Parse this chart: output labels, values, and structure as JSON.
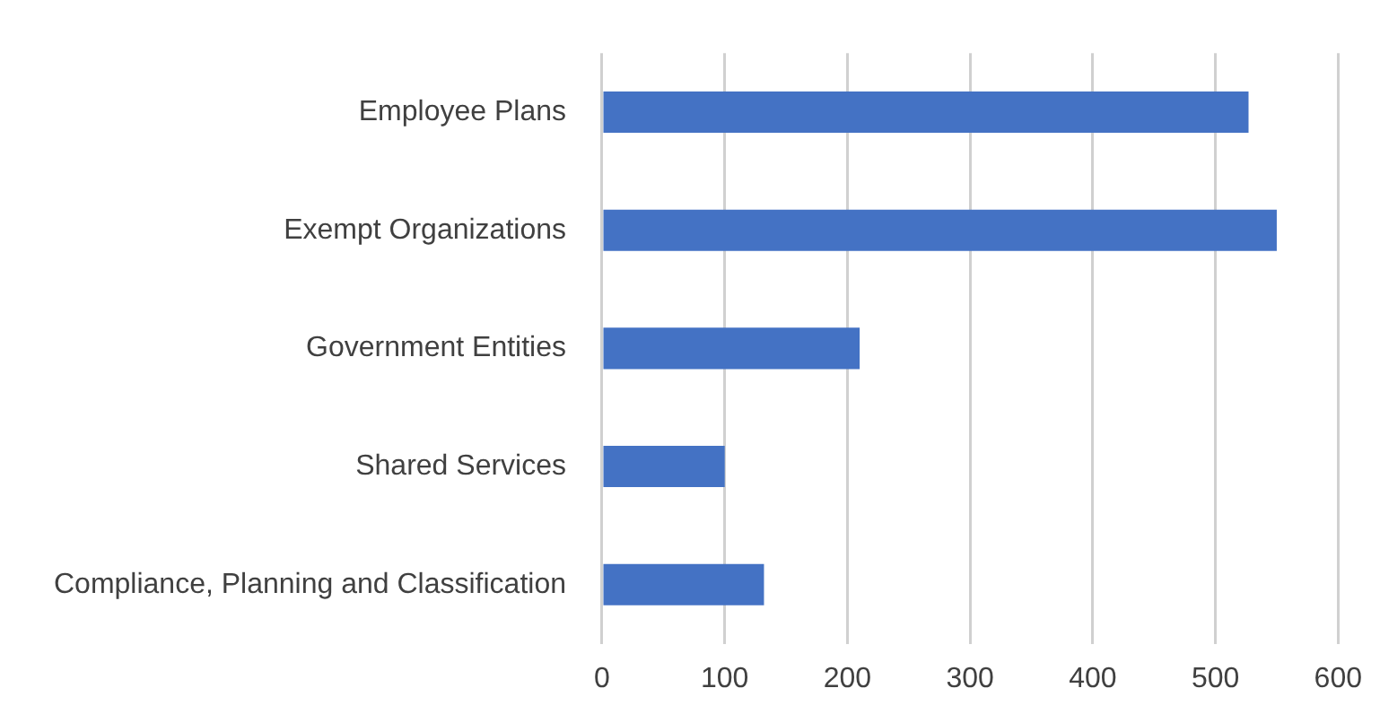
{
  "chart_data": {
    "type": "bar",
    "orientation": "horizontal",
    "categories": [
      "Employee Plans",
      "Exempt Organizations",
      "Government Entities",
      "Shared Services",
      "Compliance, Planning and Classification"
    ],
    "values": [
      527,
      550,
      210,
      100,
      132
    ],
    "color": "#4472c4",
    "xlim": [
      0,
      600
    ],
    "xticks": [
      0,
      100,
      200,
      300,
      400,
      500,
      600
    ],
    "grid": "x"
  }
}
